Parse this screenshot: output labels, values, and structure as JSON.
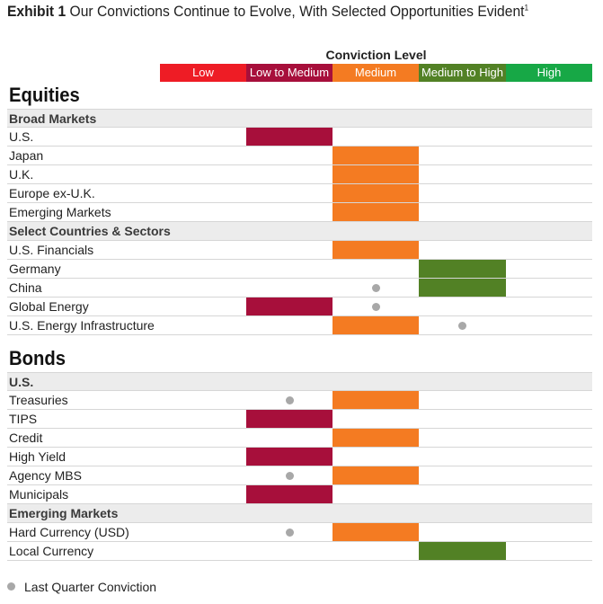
{
  "title": {
    "bold": "Exhibit 1",
    "text": "Our Convictions Continue to Evolve, With Selected Opportunities Evident",
    "footnote": "1"
  },
  "chart_data": {
    "type": "table",
    "header": "Conviction Level",
    "levels": [
      {
        "label": "Low",
        "color": "#ee1c25"
      },
      {
        "label": "Low to Medium",
        "color": "#a70f3b"
      },
      {
        "label": "Medium",
        "color": "#f47b22"
      },
      {
        "label": "Medium to High",
        "color": "#528125"
      },
      {
        "label": "High",
        "color": "#17a846"
      }
    ],
    "sections": [
      {
        "title": "Equities",
        "groups": [
          {
            "name": "Broad Markets",
            "rows": [
              {
                "label": "U.S.",
                "current": "Low to Medium",
                "previous": null
              },
              {
                "label": "Japan",
                "current": "Medium",
                "previous": null
              },
              {
                "label": "U.K.",
                "current": "Medium",
                "previous": null
              },
              {
                "label": "Europe ex-U.K.",
                "current": "Medium",
                "previous": null
              },
              {
                "label": "Emerging Markets",
                "current": "Medium",
                "previous": null
              }
            ]
          },
          {
            "name": "Select Countries & Sectors",
            "rows": [
              {
                "label": "U.S. Financials",
                "current": "Medium",
                "previous": null
              },
              {
                "label": "Germany",
                "current": "Medium to High",
                "previous": null
              },
              {
                "label": "China",
                "current": "Medium to High",
                "previous": "Medium"
              },
              {
                "label": "Global Energy",
                "current": "Low to Medium",
                "previous": "Medium"
              },
              {
                "label": "U.S. Energy Infrastructure",
                "current": "Medium",
                "previous": "Medium to High"
              }
            ]
          }
        ]
      },
      {
        "title": "Bonds",
        "groups": [
          {
            "name": "U.S.",
            "rows": [
              {
                "label": "Treasuries",
                "current": "Medium",
                "previous": "Low to Medium"
              },
              {
                "label": "TIPS",
                "current": "Low to Medium",
                "previous": null
              },
              {
                "label": "Credit",
                "current": "Medium",
                "previous": null
              },
              {
                "label": "High Yield",
                "current": "Low to Medium",
                "previous": null
              },
              {
                "label": "Agency MBS",
                "current": "Medium",
                "previous": "Low to Medium"
              },
              {
                "label": "Municipals",
                "current": "Low to Medium",
                "previous": null
              }
            ]
          },
          {
            "name": "Emerging Markets",
            "rows": [
              {
                "label": "Hard Currency (USD)",
                "current": "Medium",
                "previous": "Low to Medium"
              },
              {
                "label": "Local Currency",
                "current": "Medium to High",
                "previous": null
              }
            ]
          }
        ]
      }
    ]
  },
  "legend": {
    "marker_label": "Last Quarter Conviction",
    "marker_color": "#a8a8a8"
  }
}
